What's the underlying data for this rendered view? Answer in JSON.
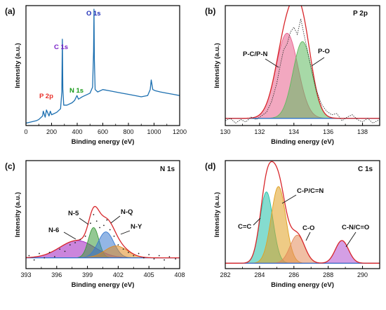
{
  "panels": [
    {
      "label": "(a)",
      "xlabel": "Binding energy (eV)",
      "ylabel": "Intensity (a.u.)",
      "inner_title": "",
      "annotations": [
        {
          "text": "P 2p",
          "color": "#e8302a"
        },
        {
          "text": "C 1s",
          "color": "#7a22c8"
        },
        {
          "text": "N 1s",
          "color": "#1a9a1a"
        },
        {
          "text": "O 1s",
          "color": "#1f2fb8"
        }
      ]
    },
    {
      "label": "(b)",
      "xlabel": "Binding energy (eV)",
      "ylabel": "Intensity (a.u.)",
      "inner_title": "P 2p",
      "annotations": [
        {
          "text": "P-C/P-N",
          "color": "#111111"
        },
        {
          "text": "P-O",
          "color": "#111111"
        }
      ]
    },
    {
      "label": "(c)",
      "xlabel": "Binding energy (eV)",
      "ylabel": "Intensity (a.u.)",
      "inner_title": "N 1s",
      "annotations": [
        {
          "text": "N-6",
          "color": "#111111"
        },
        {
          "text": "N-5",
          "color": "#111111"
        },
        {
          "text": "N-Q",
          "color": "#111111"
        },
        {
          "text": "N-Y",
          "color": "#111111"
        }
      ]
    },
    {
      "label": "(d)",
      "xlabel": "Binding energy (eV)",
      "ylabel": "Intensity (a.u.)",
      "inner_title": "C 1s",
      "annotations": [
        {
          "text": "C=C",
          "color": "#111111"
        },
        {
          "text": "C-P/C=N",
          "color": "#111111"
        },
        {
          "text": "C-O",
          "color": "#111111"
        },
        {
          "text": "C-N/C=O",
          "color": "#111111"
        }
      ]
    }
  ],
  "chart_data": [
    {
      "type": "line",
      "title": "",
      "xlabel": "Binding energy (eV)",
      "ylabel": "Intensity (a.u.)",
      "xlim": [
        0,
        1200
      ],
      "xticks": [
        0,
        200,
        400,
        600,
        800,
        1000,
        1200
      ],
      "ylim": [
        0,
        1
      ],
      "show_y_ticks": false,
      "series": [
        {
          "color": "#1c6fb0",
          "x": [
            0,
            40,
            80,
            100,
            130,
            135,
            150,
            160,
            180,
            190,
            200,
            240,
            270,
            280,
            284,
            288,
            295,
            320,
            360,
            380,
            398,
            410,
            440,
            480,
            500,
            520,
            528,
            531,
            534,
            540,
            560,
            600,
            650,
            700,
            750,
            800,
            850,
            900,
            950,
            970,
            978,
            990,
            1010,
            1050,
            1100,
            1150,
            1200
          ],
          "y": [
            0.02,
            0.03,
            0.04,
            0.05,
            0.08,
            0.12,
            0.07,
            0.13,
            0.08,
            0.12,
            0.09,
            0.11,
            0.14,
            0.28,
            0.72,
            0.3,
            0.17,
            0.17,
            0.19,
            0.21,
            0.25,
            0.22,
            0.24,
            0.26,
            0.27,
            0.32,
            0.62,
            0.97,
            0.55,
            0.3,
            0.28,
            0.3,
            0.29,
            0.28,
            0.27,
            0.26,
            0.25,
            0.24,
            0.25,
            0.3,
            0.38,
            0.3,
            0.29,
            0.28,
            0.27,
            0.26,
            0.25
          ]
        }
      ],
      "annotations": [
        "P 2p",
        "C 1s",
        "N 1s",
        "O 1s"
      ]
    },
    {
      "type": "line",
      "title": "P 2p",
      "xlabel": "Binding energy (eV)",
      "ylabel": "Intensity (a.u.)",
      "xlim": [
        130,
        139
      ],
      "xticks": [
        130,
        132,
        134,
        136,
        138
      ],
      "ylim": [
        0,
        1
      ],
      "show_y_ticks": false,
      "baseline": 0.06,
      "components": [
        {
          "name": "P-C/P-N",
          "center": 133.6,
          "fwhm": 1.5,
          "height": 0.71,
          "color": "#e8608c"
        },
        {
          "name": "P-O",
          "center": 134.5,
          "fwhm": 1.3,
          "height": 0.64,
          "color": "#5fba5f"
        }
      ],
      "raw_points": [
        [
          130.0,
          0.04
        ],
        [
          130.3,
          0.06
        ],
        [
          130.6,
          0.02
        ],
        [
          130.9,
          0.05
        ],
        [
          131.2,
          0.03
        ],
        [
          131.5,
          0.07
        ],
        [
          131.8,
          0.05
        ],
        [
          132.1,
          0.08
        ],
        [
          132.4,
          0.11
        ],
        [
          132.7,
          0.2
        ],
        [
          133.0,
          0.35
        ],
        [
          133.2,
          0.5
        ],
        [
          133.4,
          0.63
        ],
        [
          133.6,
          0.68
        ],
        [
          133.8,
          0.78
        ],
        [
          134.0,
          0.82
        ],
        [
          134.2,
          0.76
        ],
        [
          134.4,
          0.89
        ],
        [
          134.6,
          0.75
        ],
        [
          134.8,
          0.62
        ],
        [
          135.0,
          0.48
        ],
        [
          135.3,
          0.3
        ],
        [
          135.6,
          0.18
        ],
        [
          135.9,
          0.12
        ],
        [
          136.2,
          0.09
        ],
        [
          136.5,
          0.1
        ],
        [
          136.8,
          0.04
        ],
        [
          137.1,
          0.07
        ],
        [
          137.4,
          0.09
        ],
        [
          137.7,
          0.05
        ],
        [
          138.0,
          0.03
        ],
        [
          138.3,
          0.06
        ],
        [
          138.6,
          0.02
        ],
        [
          139.0,
          0.05
        ]
      ],
      "annotations": [
        "P-C/P-N",
        "P-O"
      ]
    },
    {
      "type": "line",
      "title": "N 1s",
      "xlabel": "Binding energy (eV)",
      "ylabel": "Intensity (a.u.)",
      "xlim": [
        393,
        408
      ],
      "xticks": [
        393,
        396,
        399,
        402,
        405,
        408
      ],
      "ylim": [
        0,
        1
      ],
      "show_y_ticks": false,
      "baseline": 0.1,
      "components": [
        {
          "name": "N-6",
          "center": 398.0,
          "fwhm": 4.0,
          "height": 0.16,
          "color": "#a020c0"
        },
        {
          "name": "N-5",
          "center": 399.6,
          "fwhm": 1.2,
          "height": 0.28,
          "color": "#3a9a3a"
        },
        {
          "name": "N-Q",
          "center": 400.8,
          "fwhm": 1.8,
          "height": 0.24,
          "color": "#3a7ad0"
        },
        {
          "name": "N-Y",
          "center": 401.8,
          "fwhm": 2.6,
          "height": 0.11,
          "color": "#e08a20"
        }
      ],
      "raw_points": [
        [
          393.3,
          0.12
        ],
        [
          393.8,
          0.08
        ],
        [
          394.3,
          0.14
        ],
        [
          394.8,
          0.1
        ],
        [
          395.3,
          0.15
        ],
        [
          395.8,
          0.11
        ],
        [
          396.3,
          0.18
        ],
        [
          396.8,
          0.16
        ],
        [
          397.3,
          0.22
        ],
        [
          397.8,
          0.24
        ],
        [
          398.3,
          0.27
        ],
        [
          398.8,
          0.3
        ],
        [
          399.3,
          0.42
        ],
        [
          399.6,
          0.5
        ],
        [
          399.9,
          0.44
        ],
        [
          400.2,
          0.38
        ],
        [
          400.6,
          0.4
        ],
        [
          400.9,
          0.45
        ],
        [
          401.2,
          0.36
        ],
        [
          401.6,
          0.3
        ],
        [
          402.0,
          0.22
        ],
        [
          402.5,
          0.18
        ],
        [
          403.0,
          0.15
        ],
        [
          403.5,
          0.12
        ],
        [
          404.0,
          0.14
        ],
        [
          404.5,
          0.1
        ],
        [
          405.0,
          0.13
        ],
        [
          405.5,
          0.09
        ],
        [
          406.0,
          0.12
        ],
        [
          406.5,
          0.08
        ],
        [
          407.0,
          0.11
        ],
        [
          407.6,
          0.09
        ]
      ],
      "annotations": [
        "N-6",
        "N-5",
        "N-Q",
        "N-Y"
      ]
    },
    {
      "type": "line",
      "title": "C 1s",
      "xlabel": "Binding energy (eV)",
      "ylabel": "Intensity (a.u.)",
      "xlim": [
        282,
        291
      ],
      "xticks": [
        282,
        284,
        286,
        288,
        290
      ],
      "ylim": [
        0,
        1
      ],
      "show_y_ticks": false,
      "baseline": 0.05,
      "components": [
        {
          "name": "C=C",
          "center": 284.4,
          "fwhm": 0.9,
          "height": 0.66,
          "color": "#20c0a8"
        },
        {
          "name": "C-P/C=N",
          "center": 285.1,
          "fwhm": 1.0,
          "height": 0.71,
          "color": "#e0a020"
        },
        {
          "name": "C-O",
          "center": 286.2,
          "fwhm": 1.0,
          "height": 0.26,
          "color": "#e48a5a"
        },
        {
          "name": "C-N/C=O",
          "center": 288.8,
          "fwhm": 0.9,
          "height": 0.21,
          "color": "#b050d0"
        }
      ],
      "raw_points": [],
      "annotations": [
        "C=C",
        "C-P/C=N",
        "C-O",
        "C-N/C=O"
      ]
    }
  ]
}
